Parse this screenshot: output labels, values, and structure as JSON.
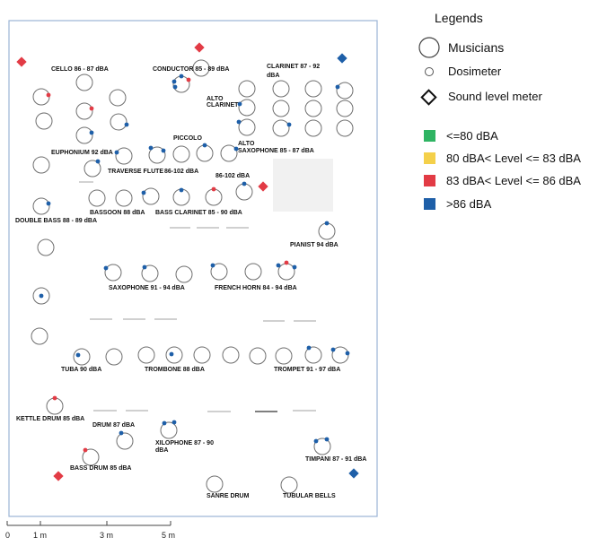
{
  "legend": {
    "title": "Legends",
    "musicians": "Musicians",
    "dosimeter": "Dosimeter",
    "meter": "Sound level meter",
    "levels": [
      {
        "label": "<=80 dBA",
        "color": "#2fb463"
      },
      {
        "label": "80 dBA< Level <= 83 dBA",
        "color": "#f4d04a"
      },
      {
        "label": "83 dBA< Level <= 86 dBA",
        "color": "#e23b45"
      },
      {
        "label": ">86 dBA",
        "color": "#1e5fa8"
      }
    ]
  },
  "labels": {
    "cello": "CELLO 86 - 87 dBA",
    "conductor": "CONDUCTOR 85 - 89 dBA",
    "clarinet": "CLARINET 87 - 92",
    "clarinet2": "dBA",
    "alto_clarinet": "ALTO",
    "alto_clarinet2": "CLARINET",
    "piccolo": "PICCOLO",
    "euphonium": "EUPHONIUM 92 dBA",
    "traverse": "TRAVERSE FLUTE",
    "flute_range": "86-102 dBA",
    "alto_sax": "ALTO",
    "alto_sax2": "SAXOPHONE 85 - 87 dBA",
    "piccolo_range": "86-102 dBA",
    "bassoon": "BASSOON 88 dBA",
    "bass_clarinet": "BASS CLARINET 85 - 90 dBA",
    "double_bass": "DOUBLE BASS 88 - 89 dBA",
    "pianist": "PIANIST  94 dBA",
    "saxophone": "SAXOPHONE 91 - 94 dBA",
    "french": "FRENCH",
    "horn": "HORN 84 - 94 dBA",
    "tuba": "TUBA 90 dBA",
    "trombone": "TROMBONE  88 dBA",
    "trumpet": "TROMPET 91 - 97 dBA",
    "kettle": "KETTLE DRUM  85 dBA",
    "drum": "DRUM 87 dBA",
    "xylophone": "XILOPHONE 87 - 90",
    "xylophone2": "dBA",
    "timpani": "TIMPANI 87 - 91 dBA",
    "bass_drum": "BASS DRUM  85 dBA",
    "snare": "SANRE DRUM",
    "tubular": "TUBULAR BELLS"
  },
  "scale": {
    "t0": "0",
    "t1": "1 m",
    "t3": "3 m",
    "t5": "5 m"
  },
  "colors": {
    "blue": "#1e5fa8",
    "red": "#e23b45",
    "outline": "#6f6f6f",
    "room": "#9bb3d6"
  }
}
